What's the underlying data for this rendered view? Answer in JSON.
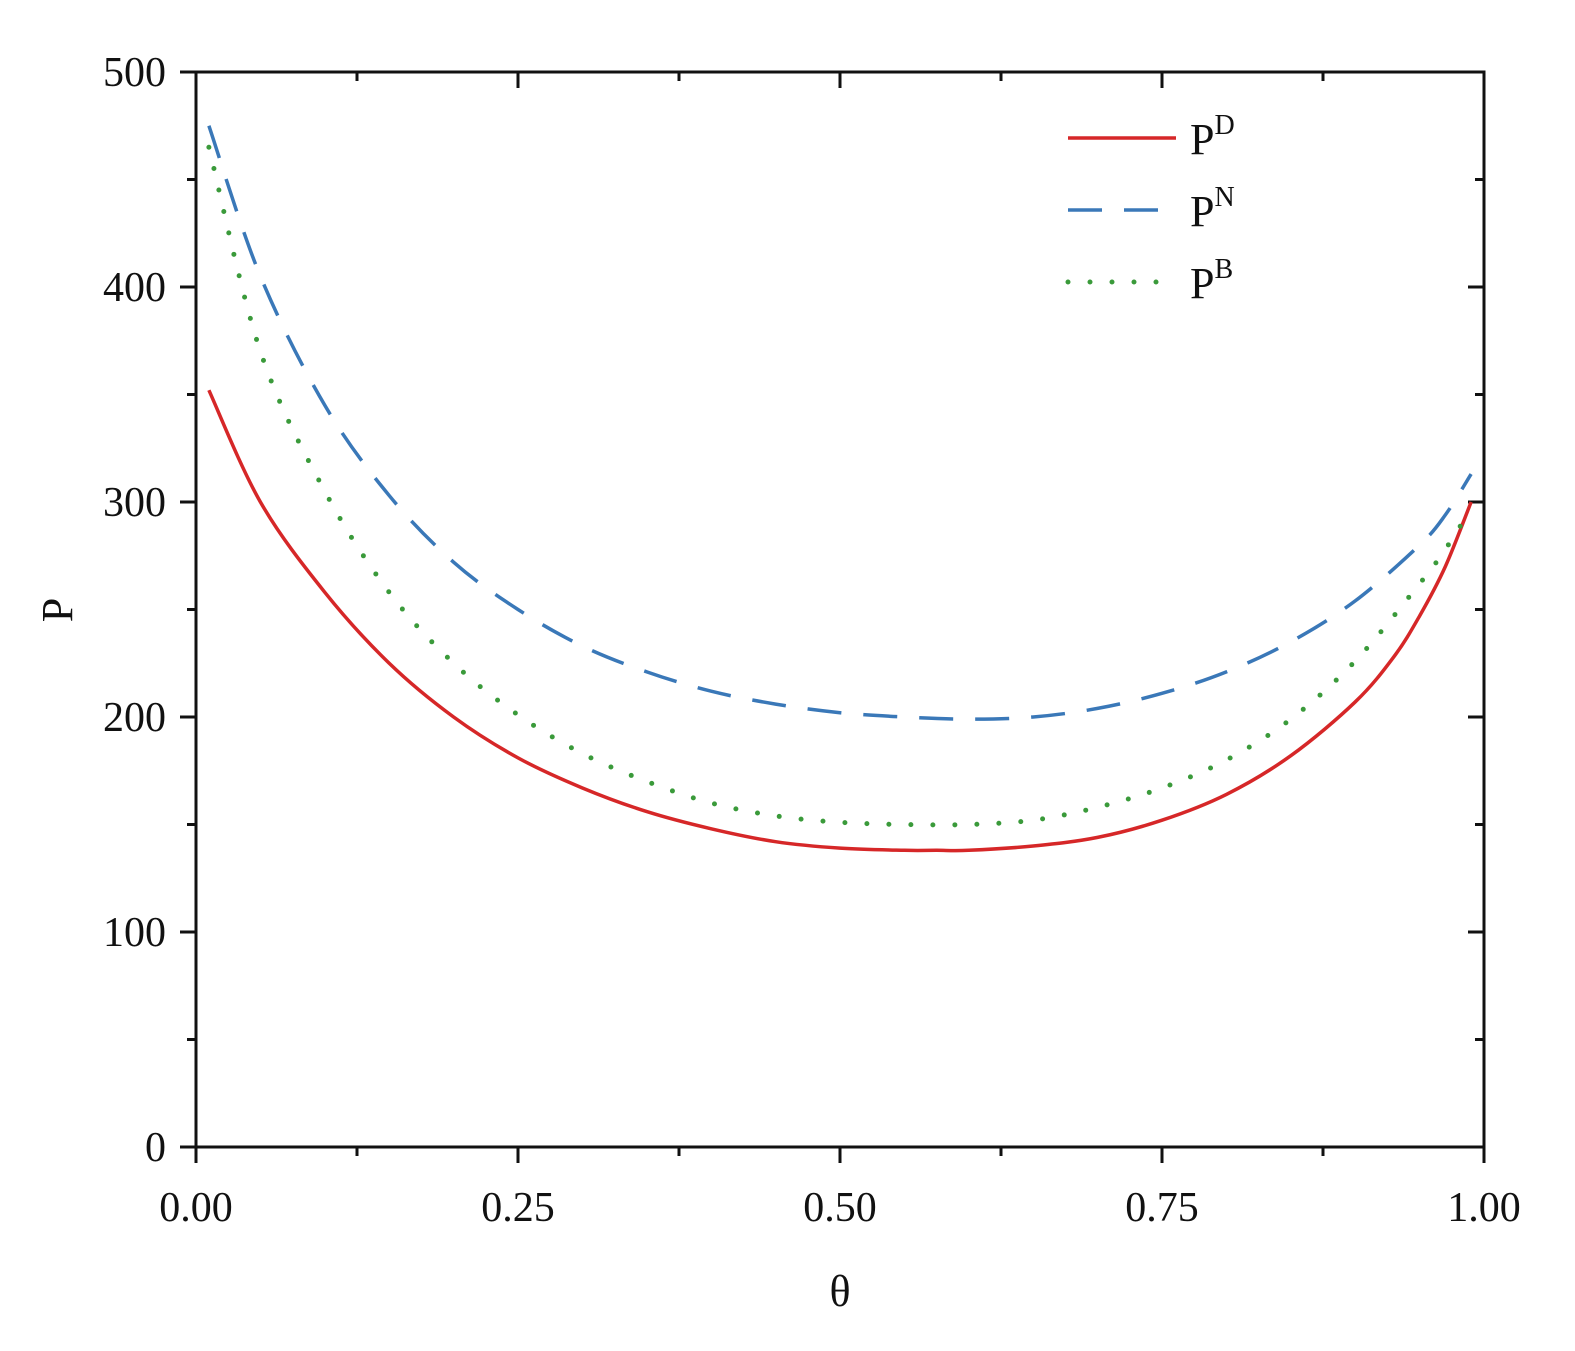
{
  "chart_data": {
    "type": "line",
    "title": "",
    "xlabel": "θ",
    "ylabel": "P",
    "xlim": [
      0.0,
      1.0
    ],
    "ylim": [
      0,
      500
    ],
    "grid": false,
    "legend_position": "top-right",
    "x_ticks": [
      "0.00",
      "0.25",
      "0.50",
      "0.75",
      "1.00"
    ],
    "y_ticks": [
      "0",
      "100",
      "200",
      "300",
      "400",
      "500"
    ],
    "series": [
      {
        "name": "D",
        "legend_base": "P",
        "legend_sup": "D",
        "color": "#d62728",
        "style": "solid",
        "points": [
          [
            0.01,
            352
          ],
          [
            0.05,
            300
          ],
          [
            0.1,
            258
          ],
          [
            0.15,
            225
          ],
          [
            0.2,
            200
          ],
          [
            0.25,
            181
          ],
          [
            0.3,
            167
          ],
          [
            0.35,
            156
          ],
          [
            0.4,
            148
          ],
          [
            0.45,
            142
          ],
          [
            0.5,
            139
          ],
          [
            0.55,
            138
          ],
          [
            0.575,
            138
          ],
          [
            0.6,
            138
          ],
          [
            0.65,
            140
          ],
          [
            0.7,
            144
          ],
          [
            0.75,
            152
          ],
          [
            0.8,
            164
          ],
          [
            0.85,
            182
          ],
          [
            0.9,
            207
          ],
          [
            0.93,
            228
          ],
          [
            0.95,
            247
          ],
          [
            0.97,
            270
          ],
          [
            0.99,
            300
          ]
        ]
      },
      {
        "name": "N",
        "legend_base": "P",
        "legend_sup": "N",
        "color": "#3a78b8",
        "style": "dashed",
        "points": [
          [
            0.01,
            475
          ],
          [
            0.05,
            405
          ],
          [
            0.1,
            345
          ],
          [
            0.15,
            303
          ],
          [
            0.2,
            272
          ],
          [
            0.25,
            250
          ],
          [
            0.3,
            233
          ],
          [
            0.35,
            221
          ],
          [
            0.4,
            212
          ],
          [
            0.45,
            206
          ],
          [
            0.5,
            202
          ],
          [
            0.55,
            200
          ],
          [
            0.6,
            199
          ],
          [
            0.65,
            200
          ],
          [
            0.7,
            204
          ],
          [
            0.75,
            211
          ],
          [
            0.8,
            221
          ],
          [
            0.85,
            235
          ],
          [
            0.9,
            254
          ],
          [
            0.95,
            280
          ],
          [
            0.97,
            294
          ],
          [
            0.99,
            313
          ]
        ]
      },
      {
        "name": "B",
        "legend_base": "P",
        "legend_sup": "B",
        "color": "#3a9a3a",
        "style": "dotted",
        "points": [
          [
            0.01,
            465
          ],
          [
            0.05,
            370
          ],
          [
            0.1,
            305
          ],
          [
            0.15,
            258
          ],
          [
            0.2,
            225
          ],
          [
            0.25,
            201
          ],
          [
            0.3,
            183
          ],
          [
            0.35,
            170
          ],
          [
            0.4,
            160
          ],
          [
            0.45,
            154
          ],
          [
            0.5,
            151
          ],
          [
            0.55,
            150
          ],
          [
            0.6,
            150
          ],
          [
            0.65,
            152
          ],
          [
            0.7,
            158
          ],
          [
            0.75,
            167
          ],
          [
            0.8,
            180
          ],
          [
            0.85,
            199
          ],
          [
            0.9,
            226
          ],
          [
            0.95,
            262
          ],
          [
            0.97,
            278
          ],
          [
            0.99,
            297
          ]
        ]
      }
    ]
  }
}
